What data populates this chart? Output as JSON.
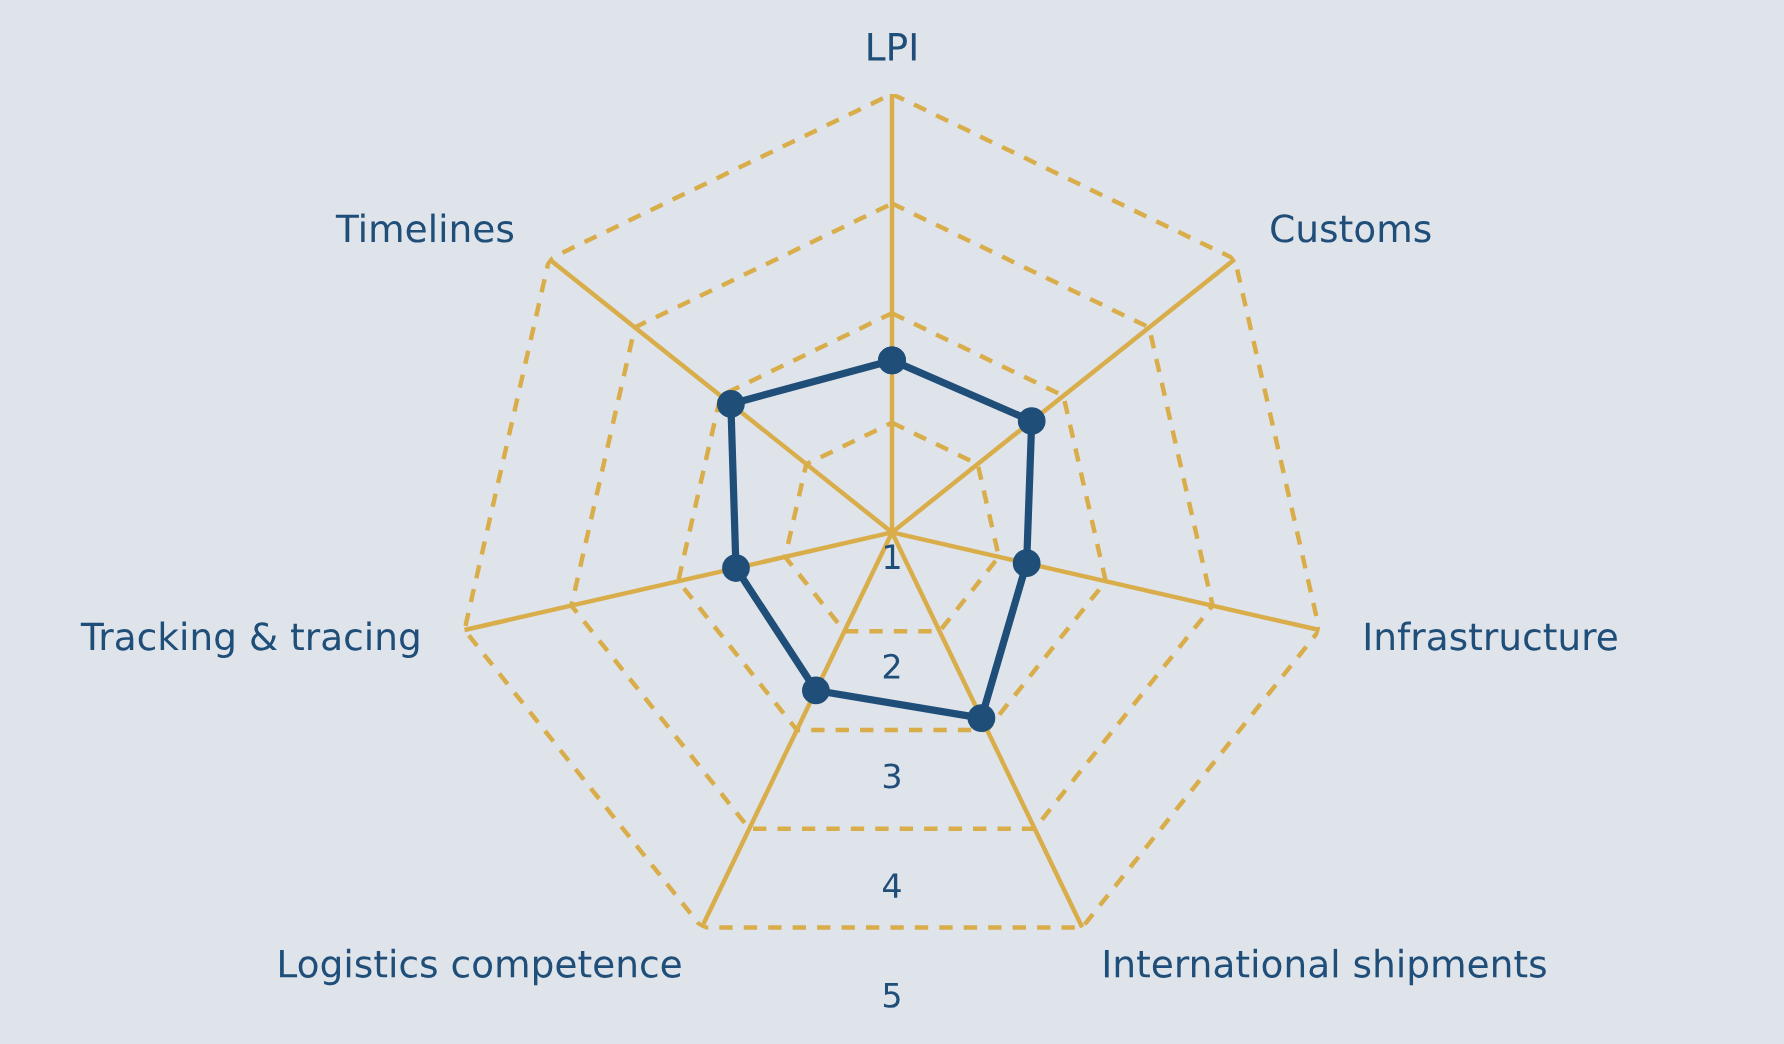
{
  "chart_data": {
    "type": "radar",
    "categories": [
      "LPI",
      "Customs",
      "Infrastructure",
      "International shipments",
      "Logistics competence",
      "Tracking & tracing",
      "Timelines"
    ],
    "series": [
      {
        "color": "#1f4e79",
        "values": [
          2.57,
          2.63,
          2.26,
          2.88,
          2.6,
          2.46,
          2.88
        ]
      }
    ],
    "ylim": [
      1,
      5
    ],
    "yticks": [
      1,
      2,
      3,
      4,
      5
    ],
    "grid": true,
    "marker": "circle",
    "line_style": "solid"
  }
}
